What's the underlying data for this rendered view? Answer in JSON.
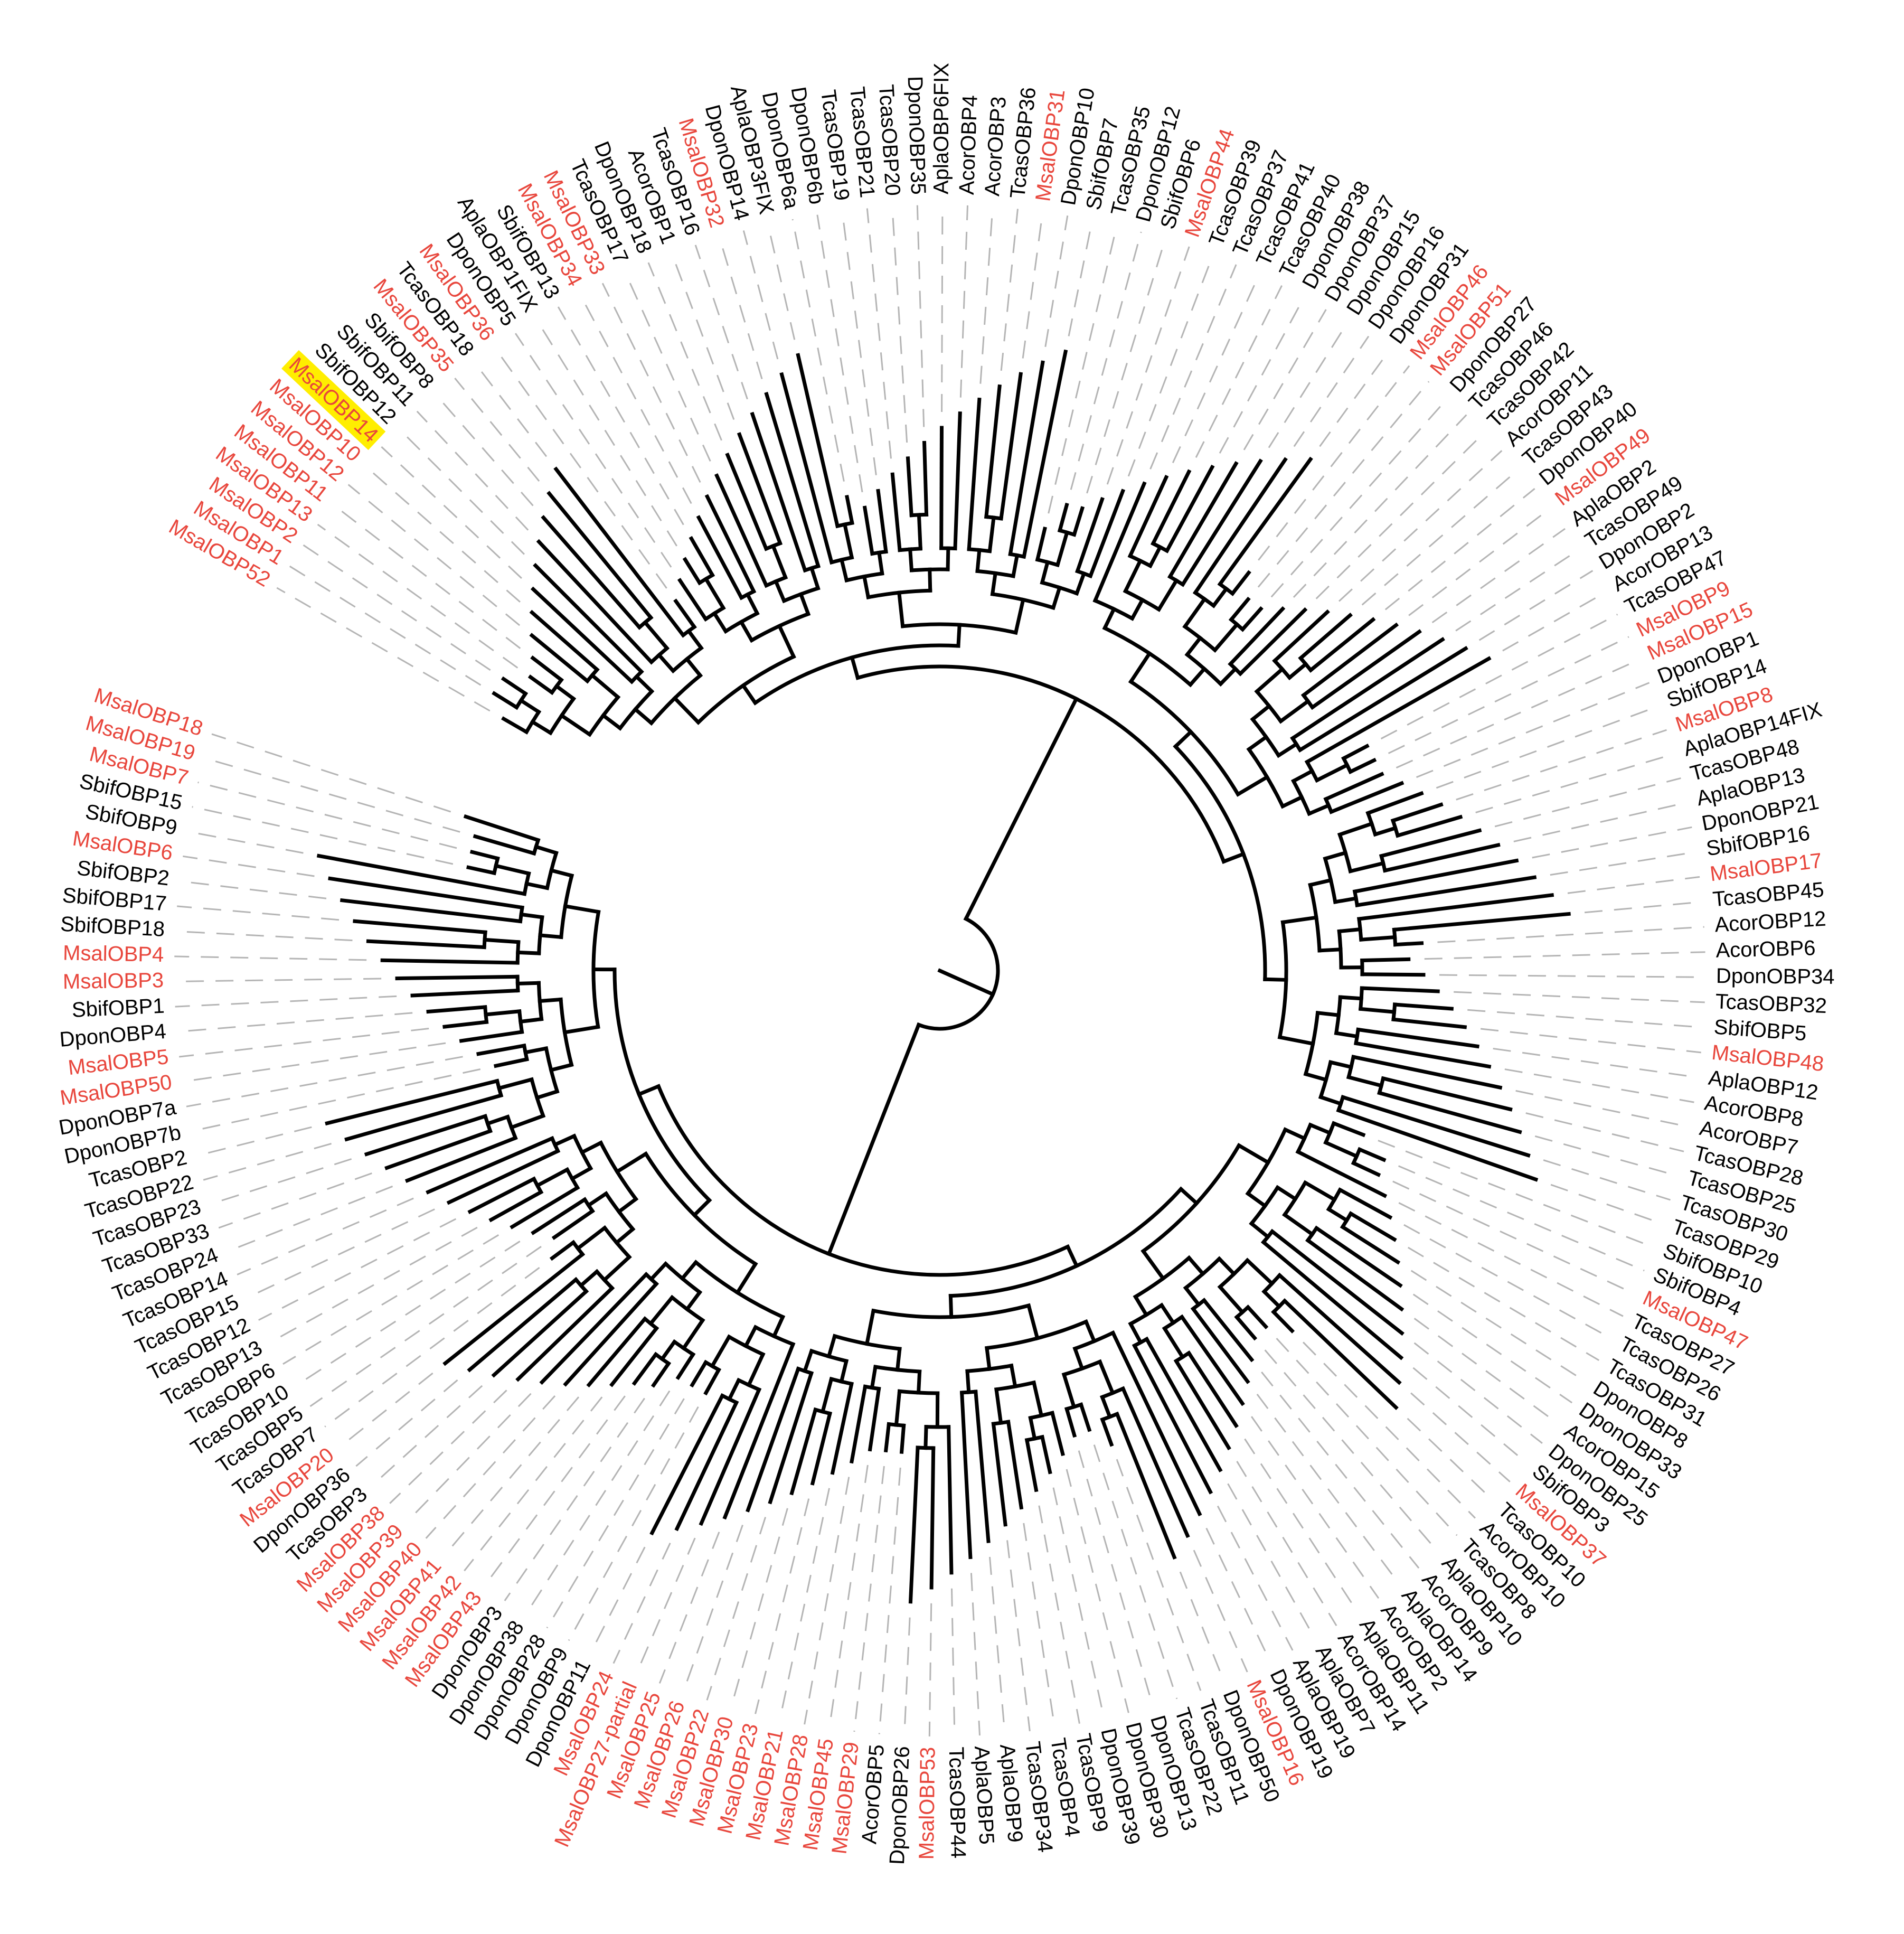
{
  "tree": {
    "leaves": [
      {
        "label": "MsalOBP52",
        "color": "#e8463c"
      },
      {
        "label": "MsalOBP1",
        "color": "#e8463c"
      },
      {
        "label": "MsalOBP2",
        "color": "#e8463c"
      },
      {
        "label": "MsalOBP13",
        "color": "#e8463c"
      },
      {
        "label": "MsalOBP11",
        "color": "#e8463c"
      },
      {
        "label": "MsalOBP12",
        "color": "#e8463c"
      },
      {
        "label": "MsalOBP10",
        "color": "#e8463c"
      },
      {
        "label": "MsalOBP14",
        "color": "#e8463c",
        "highlight": "#ffee00"
      },
      {
        "label": "SbifOBP12",
        "color": "#000000"
      },
      {
        "label": "SbifOBP11",
        "color": "#000000"
      },
      {
        "label": "SbifOBP8",
        "color": "#000000"
      },
      {
        "label": "MsalOBP35",
        "color": "#e8463c"
      },
      {
        "label": "TcasOBP18",
        "color": "#000000"
      },
      {
        "label": "MsalOBP36",
        "color": "#e8463c"
      },
      {
        "label": "DponOBP5",
        "color": "#000000"
      },
      {
        "label": "AplaOBP1FIX",
        "color": "#000000"
      },
      {
        "label": "SbifOBP13",
        "color": "#000000"
      },
      {
        "label": "MsalOBP34",
        "color": "#e8463c"
      },
      {
        "label": "MsalOBP33",
        "color": "#e8463c"
      },
      {
        "label": "TcasOBP17",
        "color": "#000000"
      },
      {
        "label": "DponOBP18",
        "color": "#000000"
      },
      {
        "label": "AcorOBP1",
        "color": "#000000"
      },
      {
        "label": "TcasOBP16",
        "color": "#000000"
      },
      {
        "label": "MsalOBP32",
        "color": "#e8463c"
      },
      {
        "label": "DponOBP14",
        "color": "#000000"
      },
      {
        "label": "AplaOBP3FIX",
        "color": "#000000"
      },
      {
        "label": "DponOBP6a",
        "color": "#000000"
      },
      {
        "label": "DponOBP6b",
        "color": "#000000"
      },
      {
        "label": "TcasOBP19",
        "color": "#000000"
      },
      {
        "label": "TcasOBP21",
        "color": "#000000"
      },
      {
        "label": "TcasOBP20",
        "color": "#000000"
      },
      {
        "label": "DponOBP35",
        "color": "#000000"
      },
      {
        "label": "AplaOBP6FIX",
        "color": "#000000"
      },
      {
        "label": "AcorOBP4",
        "color": "#000000"
      },
      {
        "label": "AcorOBP3",
        "color": "#000000"
      },
      {
        "label": "TcasOBP36",
        "color": "#000000"
      },
      {
        "label": "MsalOBP31",
        "color": "#e8463c"
      },
      {
        "label": "DponOBP10",
        "color": "#000000"
      },
      {
        "label": "SbifOBP7",
        "color": "#000000"
      },
      {
        "label": "TcasOBP35",
        "color": "#000000"
      },
      {
        "label": "DponOBP12",
        "color": "#000000"
      },
      {
        "label": "SbifOBP6",
        "color": "#000000"
      },
      {
        "label": "MsalOBP44",
        "color": "#e8463c"
      },
      {
        "label": "TcasOBP39",
        "color": "#000000"
      },
      {
        "label": "TcasOBP37",
        "color": "#000000"
      },
      {
        "label": "TcasOBP41",
        "color": "#000000"
      },
      {
        "label": "TcasOBP40",
        "color": "#000000"
      },
      {
        "label": "DponOBP38",
        "color": "#000000"
      },
      {
        "label": "DponOBP37",
        "color": "#000000"
      },
      {
        "label": "DponOBP15",
        "color": "#000000"
      },
      {
        "label": "DponOBP16",
        "color": "#000000"
      },
      {
        "label": "DponOBP31",
        "color": "#000000"
      },
      {
        "label": "MsalOBP46",
        "color": "#e8463c"
      },
      {
        "label": "MsalOBP51",
        "color": "#e8463c"
      },
      {
        "label": "DponOBP27",
        "color": "#000000"
      },
      {
        "label": "TcasOBP46",
        "color": "#000000"
      },
      {
        "label": "TcasOBP42",
        "color": "#000000"
      },
      {
        "label": "AcorOBP11",
        "color": "#000000"
      },
      {
        "label": "TcasOBP43",
        "color": "#000000"
      },
      {
        "label": "DponOBP40",
        "color": "#000000"
      },
      {
        "label": "MsalOBP49",
        "color": "#e8463c"
      },
      {
        "label": "AplaOBP2",
        "color": "#000000"
      },
      {
        "label": "TcasOBP49",
        "color": "#000000"
      },
      {
        "label": "DponOBP2",
        "color": "#000000"
      },
      {
        "label": "AcorOBP13",
        "color": "#000000"
      },
      {
        "label": "TcasOBP47",
        "color": "#000000"
      },
      {
        "label": "MsalOBP9",
        "color": "#e8463c"
      },
      {
        "label": "MsalOBP15",
        "color": "#e8463c"
      },
      {
        "label": "DponOBP1",
        "color": "#000000"
      },
      {
        "label": "SbifOBP14",
        "color": "#000000"
      },
      {
        "label": "MsalOBP8",
        "color": "#e8463c"
      },
      {
        "label": "AplaOBP14FIX",
        "color": "#000000"
      },
      {
        "label": "TcasOBP48",
        "color": "#000000"
      },
      {
        "label": "AplaOBP13",
        "color": "#000000"
      },
      {
        "label": "DponOBP21",
        "color": "#000000"
      },
      {
        "label": "SbifOBP16",
        "color": "#000000"
      },
      {
        "label": "MsalOBP17",
        "color": "#e8463c"
      },
      {
        "label": "TcasOBP45",
        "color": "#000000"
      },
      {
        "label": "AcorOBP12",
        "color": "#000000"
      },
      {
        "label": "AcorOBP6",
        "color": "#000000"
      },
      {
        "label": "DponOBP34",
        "color": "#000000"
      },
      {
        "label": "TcasOBP32",
        "color": "#000000"
      },
      {
        "label": "SbifOBP5",
        "color": "#000000"
      },
      {
        "label": "MsalOBP48",
        "color": "#e8463c"
      },
      {
        "label": "AplaOBP12",
        "color": "#000000"
      },
      {
        "label": "AcorOBP8",
        "color": "#000000"
      },
      {
        "label": "AcorOBP7",
        "color": "#000000"
      },
      {
        "label": "TcasOBP28",
        "color": "#000000"
      },
      {
        "label": "TcasOBP25",
        "color": "#000000"
      },
      {
        "label": "TcasOBP30",
        "color": "#000000"
      },
      {
        "label": "TcasOBP29",
        "color": "#000000"
      },
      {
        "label": "SbifOBP10",
        "color": "#000000"
      },
      {
        "label": "SbifOBP4",
        "color": "#000000"
      },
      {
        "label": "MsalOBP47",
        "color": "#e8463c"
      },
      {
        "label": "TcasOBP27",
        "color": "#000000"
      },
      {
        "label": "TcasOBP26",
        "color": "#000000"
      },
      {
        "label": "TcasOBP31",
        "color": "#000000"
      },
      {
        "label": "DponOBP8",
        "color": "#000000"
      },
      {
        "label": "DponOBP33",
        "color": "#000000"
      },
      {
        "label": "AcorOBP15",
        "color": "#000000"
      },
      {
        "label": "DponOBP25",
        "color": "#000000"
      },
      {
        "label": "SbifOBP3",
        "color": "#000000"
      },
      {
        "label": "MsalOBP37",
        "color": "#e8463c"
      },
      {
        "label": "TcasOBP10",
        "color": "#000000"
      },
      {
        "label": "AcorOBP10",
        "color": "#000000"
      },
      {
        "label": "TcasOBP8",
        "color": "#000000"
      },
      {
        "label": "AplaOBP10",
        "color": "#000000"
      },
      {
        "label": "AcorOBP9",
        "color": "#000000"
      },
      {
        "label": "AplaOBP14",
        "color": "#000000"
      },
      {
        "label": "AcorOBP2",
        "color": "#000000"
      },
      {
        "label": "AplaOBP11",
        "color": "#000000"
      },
      {
        "label": "AcorOBP14",
        "color": "#000000"
      },
      {
        "label": "AplaOBP7",
        "color": "#000000"
      },
      {
        "label": "AplaOBP19",
        "color": "#000000"
      },
      {
        "label": "DponOBP19",
        "color": "#000000"
      },
      {
        "label": "MsalOBP16",
        "color": "#e8463c"
      },
      {
        "label": "DponOBP50",
        "color": "#000000"
      },
      {
        "label": "TcasOBP11",
        "color": "#000000"
      },
      {
        "label": "TcasOBP22",
        "color": "#000000"
      },
      {
        "label": "DponOBP13",
        "color": "#000000"
      },
      {
        "label": "DponOBP30",
        "color": "#000000"
      },
      {
        "label": "DponOBP39",
        "color": "#000000"
      },
      {
        "label": "TcasOBP9",
        "color": "#000000"
      },
      {
        "label": "TcasOBP4",
        "color": "#000000"
      },
      {
        "label": "TcasOBP34",
        "color": "#000000"
      },
      {
        "label": "AplaOBP9",
        "color": "#000000"
      },
      {
        "label": "AplaOBP5",
        "color": "#000000"
      },
      {
        "label": "TcasOBP44",
        "color": "#000000"
      },
      {
        "label": "MsalOBP53",
        "color": "#e8463c"
      },
      {
        "label": "DponOBP26",
        "color": "#000000"
      },
      {
        "label": "AcorOBP5",
        "color": "#000000"
      },
      {
        "label": "MsalOBP29",
        "color": "#e8463c"
      },
      {
        "label": "MsalOBP45",
        "color": "#e8463c"
      },
      {
        "label": "MsalOBP28",
        "color": "#e8463c"
      },
      {
        "label": "MsalOBP21",
        "color": "#e8463c"
      },
      {
        "label": "MsalOBP23",
        "color": "#e8463c"
      },
      {
        "label": "MsalOBP30",
        "color": "#e8463c"
      },
      {
        "label": "MsalOBP22",
        "color": "#e8463c"
      },
      {
        "label": "MsalOBP26",
        "color": "#e8463c"
      },
      {
        "label": "MsalOBP25",
        "color": "#e8463c"
      },
      {
        "label": "MsalOBP27-partial",
        "color": "#e8463c"
      },
      {
        "label": "MsalOBP24",
        "color": "#e8463c"
      },
      {
        "label": "DponOBP11",
        "color": "#000000"
      },
      {
        "label": "DponOBP9",
        "color": "#000000"
      },
      {
        "label": "DponOBP28",
        "color": "#000000"
      },
      {
        "label": "DponOBP38",
        "color": "#000000"
      },
      {
        "label": "DponOBP3",
        "color": "#000000"
      },
      {
        "label": "MsalOBP43",
        "color": "#e8463c"
      },
      {
        "label": "MsalOBP42",
        "color": "#e8463c"
      },
      {
        "label": "MsalOBP41",
        "color": "#e8463c"
      },
      {
        "label": "MsalOBP40",
        "color": "#e8463c"
      },
      {
        "label": "MsalOBP39",
        "color": "#e8463c"
      },
      {
        "label": "MsalOBP38",
        "color": "#e8463c"
      },
      {
        "label": "TcasOBP3",
        "color": "#000000"
      },
      {
        "label": "DponOBP36",
        "color": "#000000"
      },
      {
        "label": "MsalOBP20",
        "color": "#e8463c"
      },
      {
        "label": "TcasOBP7",
        "color": "#000000"
      },
      {
        "label": "TcasOBP5",
        "color": "#000000"
      },
      {
        "label": "TcasOBP10",
        "color": "#000000"
      },
      {
        "label": "TcasOBP6",
        "color": "#000000"
      },
      {
        "label": "TcasOBP13",
        "color": "#000000"
      },
      {
        "label": "TcasOBP12",
        "color": "#000000"
      },
      {
        "label": "TcasOBP15",
        "color": "#000000"
      },
      {
        "label": "TcasOBP14",
        "color": "#000000"
      },
      {
        "label": "TcasOBP24",
        "color": "#000000"
      },
      {
        "label": "TcasOBP33",
        "color": "#000000"
      },
      {
        "label": "TcasOBP23",
        "color": "#000000"
      },
      {
        "label": "TcasOBP22",
        "color": "#000000"
      },
      {
        "label": "TcasOBP2",
        "color": "#000000"
      },
      {
        "label": "DponOBP7b",
        "color": "#000000"
      },
      {
        "label": "DponOBP7a",
        "color": "#000000"
      },
      {
        "label": "MsalOBP50",
        "color": "#e8463c"
      },
      {
        "label": "MsalOBP5",
        "color": "#e8463c"
      },
      {
        "label": "DponOBP4",
        "color": "#000000"
      },
      {
        "label": "SbifOBP1",
        "color": "#000000"
      },
      {
        "label": "MsalOBP3",
        "color": "#e8463c"
      },
      {
        "label": "MsalOBP4",
        "color": "#e8463c"
      },
      {
        "label": "SbifOBP18",
        "color": "#000000"
      },
      {
        "label": "SbifOBP17",
        "color": "#000000"
      },
      {
        "label": "SbifOBP2",
        "color": "#000000"
      },
      {
        "label": "MsalOBP6",
        "color": "#e8463c"
      },
      {
        "label": "SbifOBP9",
        "color": "#000000"
      },
      {
        "label": "SbifOBP15",
        "color": "#000000"
      },
      {
        "label": "MsalOBP7",
        "color": "#e8463c"
      },
      {
        "label": "MsalOBP19",
        "color": "#e8463c"
      },
      {
        "label": "MsalOBP18",
        "color": "#e8463c"
      }
    ]
  }
}
